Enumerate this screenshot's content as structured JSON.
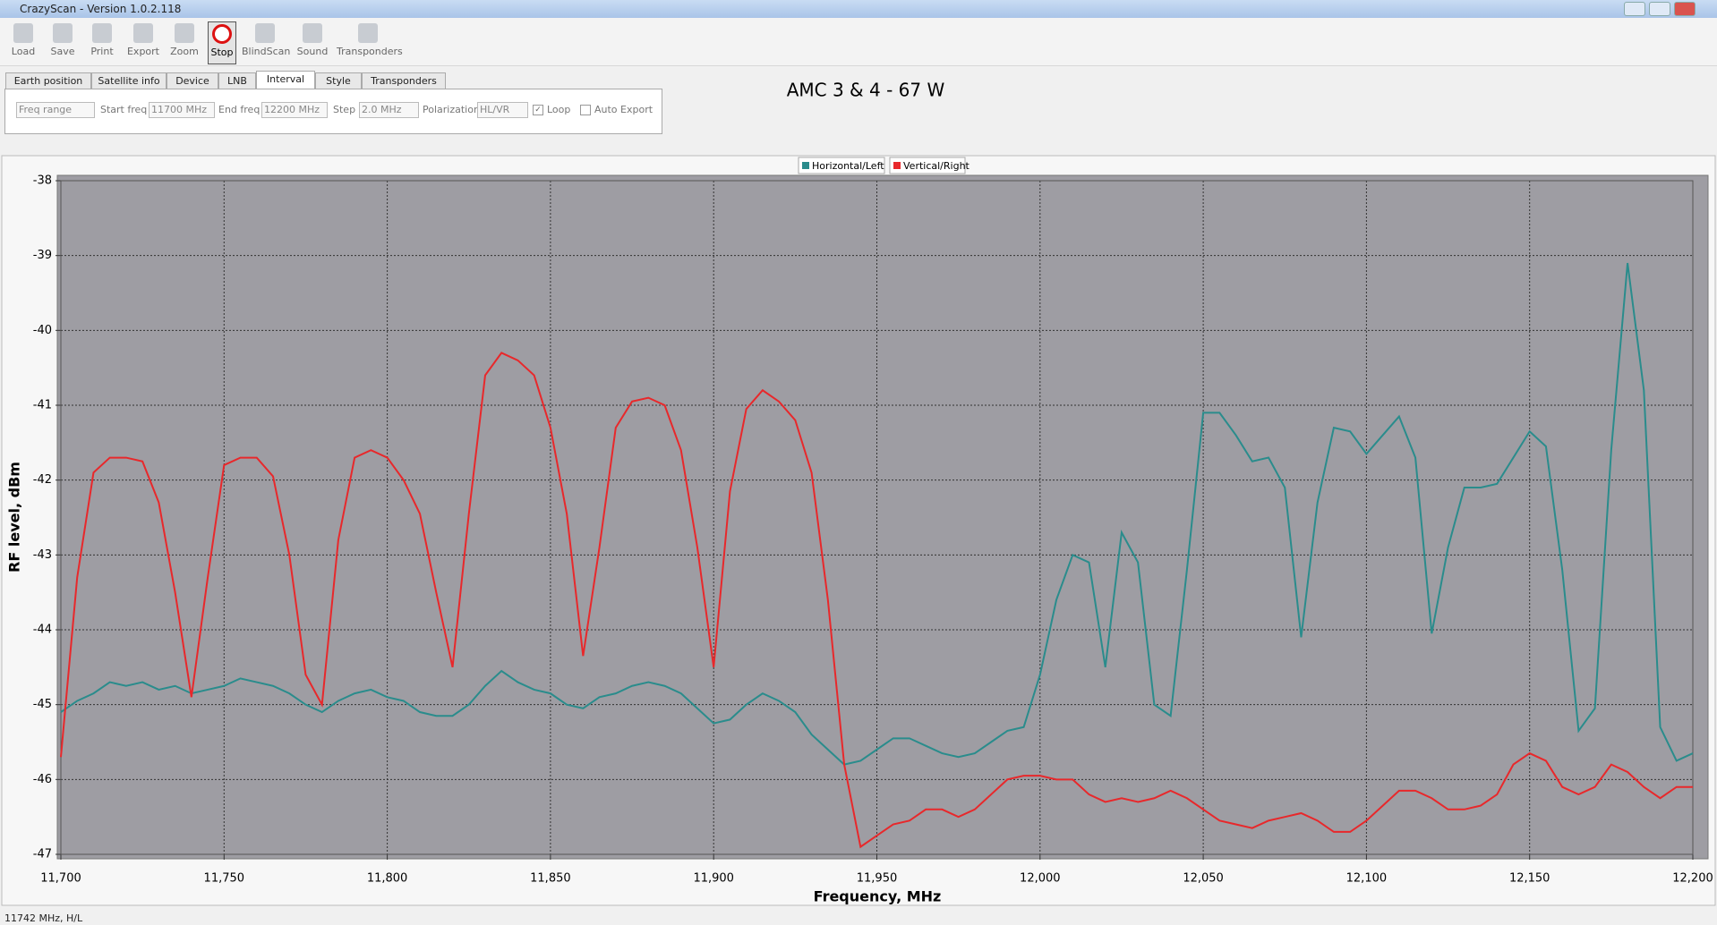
{
  "window": {
    "title": "CrazyScan - Version 1.0.2.118"
  },
  "toolbar": {
    "buttons": [
      "Load",
      "Save",
      "Print",
      "Export",
      "Zoom",
      "Stop",
      "BlindScan",
      "Sound",
      "Transponders"
    ],
    "pressed": 5
  },
  "tabs": {
    "items": [
      "Earth position",
      "Satellite info",
      "Device",
      "LNB",
      "Interval",
      "Style",
      "Transponders"
    ],
    "active": 4
  },
  "interval": {
    "mode": "Freq range",
    "start_label": "Start freq",
    "start": "11700 MHz",
    "end_label": "End freq",
    "end": "12200 MHz",
    "step_label": "Step",
    "step": "2.0 MHz",
    "pol_label": "Polarization",
    "pol": "HL/VR",
    "loop": "Loop",
    "loop_checked": true,
    "auto_export": "Auto Export",
    "auto_export_checked": false
  },
  "status": "11742 MHz, H/L",
  "chart_data": {
    "type": "line",
    "title": "AMC 3 & 4 - 67 W",
    "x_label": "Frequency, MHz",
    "y_label": "RF level, dBm",
    "x": [
      11700,
      11705,
      11710,
      11715,
      11720,
      11725,
      11730,
      11735,
      11740,
      11745,
      11750,
      11755,
      11760,
      11765,
      11770,
      11775,
      11780,
      11785,
      11790,
      11795,
      11800,
      11805,
      11810,
      11815,
      11820,
      11825,
      11830,
      11835,
      11840,
      11845,
      11850,
      11855,
      11860,
      11865,
      11870,
      11875,
      11880,
      11885,
      11890,
      11895,
      11900,
      11905,
      11910,
      11915,
      11920,
      11925,
      11930,
      11935,
      11940,
      11945,
      11950,
      11955,
      11960,
      11965,
      11970,
      11975,
      11980,
      11985,
      11990,
      11995,
      12000,
      12005,
      12010,
      12015,
      12020,
      12025,
      12030,
      12035,
      12040,
      12045,
      12050,
      12055,
      12060,
      12065,
      12070,
      12075,
      12080,
      12085,
      12090,
      12095,
      12100,
      12105,
      12110,
      12115,
      12120,
      12125,
      12130,
      12135,
      12140,
      12145,
      12150,
      12155,
      12160,
      12165,
      12170,
      12175,
      12180,
      12185,
      12190,
      12195,
      12200
    ],
    "series": [
      {
        "name": "Horizontal/Left",
        "color": "#2a8c8c",
        "values": [
          -45.1,
          -44.95,
          -44.85,
          -44.7,
          -44.75,
          -44.7,
          -44.8,
          -44.75,
          -44.85,
          -44.8,
          -44.75,
          -44.65,
          -44.7,
          -44.75,
          -44.85,
          -45.0,
          -45.1,
          -44.95,
          -44.85,
          -44.8,
          -44.9,
          -44.95,
          -45.1,
          -45.15,
          -45.15,
          -45.0,
          -44.75,
          -44.55,
          -44.7,
          -44.8,
          -44.85,
          -45.0,
          -45.05,
          -44.9,
          -44.85,
          -44.75,
          -44.7,
          -44.75,
          -44.85,
          -45.05,
          -45.25,
          -45.2,
          -45.0,
          -44.85,
          -44.95,
          -45.1,
          -45.4,
          -45.6,
          -45.8,
          -45.75,
          -45.6,
          -45.45,
          -45.45,
          -45.55,
          -45.65,
          -45.7,
          -45.65,
          -45.5,
          -45.35,
          -45.3,
          -44.6,
          -43.6,
          -43.0,
          -43.1,
          -44.5,
          -42.7,
          -43.1,
          -45.0,
          -45.15,
          -43.2,
          -41.1,
          -41.1,
          -41.4,
          -41.75,
          -41.7,
          -42.1,
          -44.1,
          -42.3,
          -41.3,
          -41.35,
          -41.65,
          -41.4,
          -41.15,
          -41.7,
          -44.05,
          -42.9,
          -42.1,
          -42.1,
          -42.05,
          -41.7,
          -41.35,
          -41.55,
          -43.2,
          -45.35,
          -45.05,
          -41.6,
          -39.1,
          -40.8,
          -45.3,
          -45.75,
          -45.65
        ]
      },
      {
        "name": "Vertical/Right",
        "color": "#e8282b",
        "values": [
          -45.7,
          -43.3,
          -41.9,
          -41.7,
          -41.7,
          -41.75,
          -42.3,
          -43.5,
          -44.9,
          -43.3,
          -41.8,
          -41.7,
          -41.7,
          -41.95,
          -43.0,
          -44.6,
          -45.0,
          -42.8,
          -41.7,
          -41.6,
          -41.7,
          -42.0,
          -42.45,
          -43.5,
          -44.5,
          -42.45,
          -40.6,
          -40.3,
          -40.4,
          -40.6,
          -41.3,
          -42.45,
          -44.35,
          -42.9,
          -41.3,
          -40.95,
          -40.9,
          -41.0,
          -41.6,
          -42.9,
          -44.5,
          -42.15,
          -41.05,
          -40.8,
          -40.95,
          -41.2,
          -41.9,
          -43.6,
          -45.8,
          -46.9,
          -46.75,
          -46.6,
          -46.55,
          -46.4,
          -46.4,
          -46.5,
          -46.4,
          -46.2,
          -46.0,
          -45.95,
          -45.95,
          -46.0,
          -46.0,
          -46.2,
          -46.3,
          -46.25,
          -46.3,
          -46.25,
          -46.15,
          -46.25,
          -46.4,
          -46.55,
          -46.6,
          -46.65,
          -46.55,
          -46.5,
          -46.45,
          -46.55,
          -46.7,
          -46.7,
          -46.55,
          -46.35,
          -46.15,
          -46.15,
          -46.25,
          -46.4,
          -46.4,
          -46.35,
          -46.2,
          -45.8,
          -45.65,
          -45.75,
          -46.1,
          -46.2,
          -46.1,
          -45.8,
          -45.9,
          -46.1,
          -46.25,
          -46.1,
          -46.1
        ]
      }
    ],
    "xlim": [
      11700,
      12200
    ],
    "xticks": [
      {
        "value": 11700,
        "label": "11,700"
      },
      {
        "value": 11750,
        "label": "11,750"
      },
      {
        "value": 11800,
        "label": "11,800"
      },
      {
        "value": 11850,
        "label": "11,850"
      },
      {
        "value": 11900,
        "label": "11,900"
      },
      {
        "value": 11950,
        "label": "11,950"
      },
      {
        "value": 12000,
        "label": "12,000"
      },
      {
        "value": 12050,
        "label": "12,050"
      },
      {
        "value": 12100,
        "label": "12,100"
      },
      {
        "value": 12150,
        "label": "12,150"
      },
      {
        "value": 12200,
        "label": "12,200"
      }
    ],
    "ylim": [
      -47,
      -38
    ],
    "yticks": [
      -38,
      -39,
      -40,
      -41,
      -42,
      -43,
      -44,
      -45,
      -46,
      -47
    ],
    "grid": true,
    "legend": "top"
  }
}
